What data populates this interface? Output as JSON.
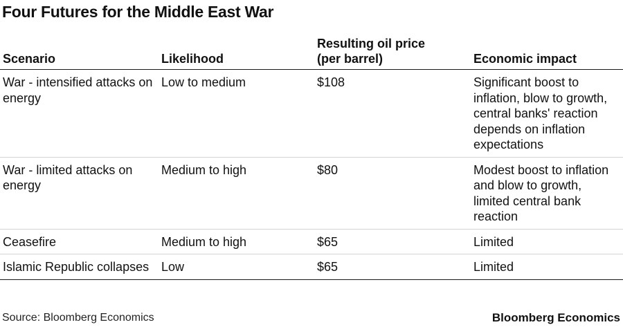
{
  "title": "Four Futures for the Middle East War",
  "table": {
    "headers": [
      "Scenario",
      "Likelihood",
      "Resulting oil price (per barrel)",
      "Economic impact"
    ],
    "rows": [
      {
        "scenario": "War - intensified attacks on energy",
        "likelihood": "Low to medium",
        "oil_price": "$108",
        "impact": "Significant boost to inflation, blow to growth, central banks' reaction depends on inflation expectations"
      },
      {
        "scenario": "War - limited attacks on energy",
        "likelihood": "Medium to high",
        "oil_price": "$80",
        "impact": "Modest boost to inflation and blow to growth, limited central bank reaction"
      },
      {
        "scenario": "Ceasefire",
        "likelihood": "Medium to high",
        "oil_price": "$65",
        "impact": "Limited"
      },
      {
        "scenario": "Islamic Republic collapses",
        "likelihood": "Low",
        "oil_price": "$65",
        "impact": "Limited"
      }
    ]
  },
  "footer": {
    "source": "Source: Bloomberg Economics",
    "brand": "Bloomberg Economics"
  }
}
